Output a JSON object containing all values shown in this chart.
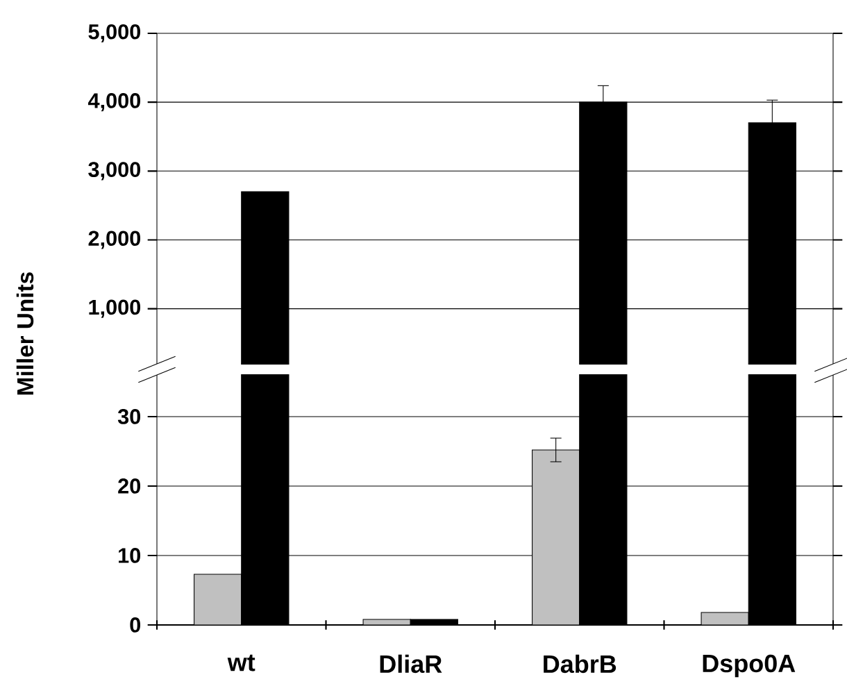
{
  "chart_data": [
    {
      "type": "bar",
      "ylabel": "Miller Units",
      "tick_labels": "y",
      "grid": "y",
      "ylim": [
        200,
        5000
      ],
      "yticks": [
        {
          "value": 1000,
          "label": "1,000"
        },
        {
          "value": 2000,
          "label": "2,000"
        },
        {
          "value": 3000,
          "label": "3,000"
        },
        {
          "value": 4000,
          "label": "4,000"
        },
        {
          "value": 5000,
          "label": "5,000"
        }
      ],
      "series": [
        {
          "color": "#000000",
          "values": [
            2700,
            null,
            4000,
            3700
          ],
          "errors": [
            null,
            null,
            240,
            330
          ]
        }
      ]
    },
    {
      "type": "bar",
      "categories": [
        "wt",
        "DliaR",
        "DabrB",
        "Dspo0A"
      ],
      "grid": "y",
      "ylim": [
        0,
        36
      ],
      "yticks": [
        0,
        10,
        20,
        30
      ],
      "series": [
        {
          "color": "#c0c0c0",
          "values": [
            7.3,
            0.8,
            25.2,
            1.8
          ],
          "errors": [
            null,
            null,
            1.7,
            null
          ]
        },
        {
          "color": "#000000",
          "values": [
            null,
            0.8,
            null,
            null
          ]
        }
      ]
    }
  ]
}
